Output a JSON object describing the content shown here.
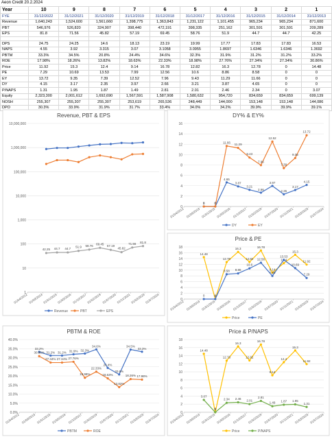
{
  "header": {
    "title": "Aeon Credit 20.2.2024"
  },
  "table": {
    "corner": "Year",
    "years": [
      "10",
      "9",
      "8",
      "7",
      "6",
      "5",
      "4",
      "3",
      "2",
      "1"
    ],
    "rows": [
      {
        "label": "FYE",
        "cells": [
          "31/12/2022",
          "31/12/2021",
          "31/12/2020",
          "31/12/2019",
          "31/12/2018",
          "31/12/2017",
          "31/12/2016",
          "31/12/2015",
          "31/12/2014",
          "31/12/2013"
        ]
      },
      {
        "label": "Revenue",
        "cells": [
          "1,640,243",
          "1,524,600",
          "1,561,660",
          "1,398,775",
          "1,363,843",
          "1,231,122",
          "1,101,455",
          "965,234",
          "965,234",
          "871,600"
        ]
      },
      {
        "label": "PBT",
        "cells": [
          "546,976",
          "526,820",
          "324,907",
          "398,440",
          "472,191",
          "398,335",
          "251,162",
          "301,591",
          "301,591",
          "209,289"
        ]
      },
      {
        "label": "EPS",
        "cells": [
          "81.8",
          "71.56",
          "45.82",
          "57.19",
          "69.45",
          "58.76",
          "51.9",
          "44.7",
          "44.7",
          "42.25"
        ]
      },
      {
        "label": "DPS",
        "cells": [
          "24.75",
          "24.25",
          "14.6",
          "18.13",
          "23.19",
          "19.99",
          "17.77",
          "17.83",
          "17.83",
          "16.53"
        ]
      },
      {
        "label": "NAPS",
        "cells": [
          "4.55",
          "3.92",
          "3.315",
          "3.07",
          "3.1058",
          "3.0955",
          "1.8697",
          "1.6346",
          "1.6346",
          "1.3692"
        ]
      },
      {
        "label": "PBTM",
        "cells": [
          "33.3%",
          "34.5%",
          "20.8%",
          "24.4%",
          "34.6%",
          "32.3%",
          "31.9%",
          "31.2%",
          "31.2%",
          "33.2%"
        ]
      },
      {
        "label": "ROE",
        "cells": [
          "17.98%",
          "18.26%",
          "13.82%",
          "18.63%",
          "22.33%",
          "18.98%",
          "27.76%",
          "27.34%",
          "27.34%",
          "30.86%"
        ]
      },
      {
        "label": "Price",
        "cells": [
          "11.92",
          "15.3",
          "12.4",
          "9.14",
          "16.78",
          "12.82",
          "16.3",
          "12.78",
          "0",
          "14.48"
        ]
      },
      {
        "label": "PE",
        "cells": [
          "7.29",
          "10.69",
          "13.53",
          "7.99",
          "12.56",
          "10.6",
          "8.86",
          "8.58",
          "0",
          "0"
        ]
      },
      {
        "label": "EY",
        "cells": [
          "13.72",
          "9.35",
          "7.39",
          "12.52",
          "7.96",
          "9.43",
          "11.29",
          "11.66",
          "0",
          "0"
        ]
      },
      {
        "label": "DY",
        "cells": [
          "4.15",
          "3.17",
          "2.35",
          "3.97",
          "2.66",
          "3.21",
          "3.87",
          "4.65",
          "0",
          "0"
        ]
      },
      {
        "label": "P/NAPS",
        "cells": [
          "1.31",
          "1.95",
          "1.87",
          "1.49",
          "2.81",
          "2.01",
          "2.46",
          "2.34",
          "0",
          "3.07"
        ]
      },
      {
        "label": "Equity",
        "cells": [
          "2,323,300",
          "2,001,612",
          "1,692,690",
          "1,567,591",
          "1,587,908",
          "1,580,632",
          "954,720",
          "834,659",
          "834,659",
          "699,139"
        ]
      },
      {
        "label": "NOSH",
        "cells": [
          "255,307",
          "255,307",
          "255,307",
          "253,619",
          "265,536",
          "248,449",
          "144,000",
          "153,148",
          "153,148",
          "144,086"
        ]
      },
      {
        "label": "DPO",
        "cells": [
          "30.3%",
          "33.9%",
          "31.9%",
          "31.7%",
          "33.4%",
          "34.0%",
          "34.2%",
          "39.9%",
          "39.9%",
          "39.1%"
        ]
      }
    ]
  },
  "chart_data": [
    {
      "type": "line",
      "title": "Revenue, PBT & EPS",
      "log_scale": true,
      "grid": true,
      "legend": "bottom",
      "x": [
        "2013-12-31",
        "2014-12-31",
        "2015-12-31",
        "2016-12-31",
        "2017-12-31",
        "2018-12-31",
        "2019-12-31",
        "2020-12-31",
        "2021-12-31",
        "2022-12-31"
      ],
      "xlim": [
        "2012-04-01",
        "2024-07-01"
      ],
      "xticks": [
        {
          "value": "2012-04-01",
          "label": "01/04/2012"
        },
        {
          "value": "2013-09-01",
          "label": "01/09/2013"
        },
        {
          "value": "2015-01-01",
          "label": "01/01/2015"
        },
        {
          "value": "2016-05-01",
          "label": "01/05/2016"
        },
        {
          "value": "2017-10-01",
          "label": "01/10/2017"
        },
        {
          "value": "2019-02-01",
          "label": "01/02/2019"
        },
        {
          "value": "2020-07-01",
          "label": "01/07/2020"
        },
        {
          "value": "2021-11-01",
          "label": "01/11/2021"
        },
        {
          "value": "2023-03-01",
          "label": "01/03/2023"
        },
        {
          "value": "2024-07-01",
          "label": "01/07/2024"
        }
      ],
      "ylim": [
        1,
        10000000
      ],
      "yticks": [
        1,
        10,
        100,
        {
          "value": 1000,
          "label": "1,000"
        },
        {
          "value": 10000,
          "label": "10,000"
        },
        {
          "value": 100000,
          "label": "100,000"
        },
        {
          "value": 1000000,
          "label": "1,000,000"
        },
        {
          "value": 10000000,
          "label": "10,000,000"
        }
      ],
      "series": [
        {
          "name": "Revenue",
          "color": "#4472c4",
          "data_labels": false,
          "values": [
            871600,
            965234,
            965234,
            1101455,
            1231122,
            1363843,
            1398775,
            1561660,
            1524600,
            1640243
          ]
        },
        {
          "name": "PBT",
          "color": "#ed7d31",
          "data_labels": false,
          "values": [
            209289,
            301591,
            301591,
            251162,
            398335,
            472191,
            398440,
            324907,
            526820,
            546976
          ]
        },
        {
          "name": "EPS",
          "color": "#a5a5a5",
          "data_labels": true,
          "values": [
            42.25,
            44.7,
            44.7,
            51.9,
            58.76,
            69.45,
            57.19,
            45.82,
            71.56,
            81.8
          ]
        }
      ]
    },
    {
      "type": "line",
      "title": "DY% & EY%",
      "log_scale": false,
      "grid": true,
      "legend": "bottom",
      "x": [
        "2013-12-31",
        "2014-12-31",
        "2015-12-31",
        "2016-12-31",
        "2017-12-31",
        "2018-12-31",
        "2019-12-31",
        "2020-12-31",
        "2021-12-31",
        "2022-12-31"
      ],
      "xlim": [
        "2012-04-01",
        "2024-07-01"
      ],
      "xticks": [
        {
          "value": "2012-04-01",
          "label": "01/04/2012"
        },
        {
          "value": "2013-09-01",
          "label": "01/09/2013"
        },
        {
          "value": "2015-01-01",
          "label": "01/01/2015"
        },
        {
          "value": "2016-05-01",
          "label": "01/05/2016"
        },
        {
          "value": "2017-10-01",
          "label": "01/10/2017"
        },
        {
          "value": "2019-02-01",
          "label": "01/02/2019"
        },
        {
          "value": "2020-07-01",
          "label": "01/07/2020"
        },
        {
          "value": "2021-11-01",
          "label": "01/11/2021"
        },
        {
          "value": "2023-03-01",
          "label": "01/03/2023"
        },
        {
          "value": "2024-07-01",
          "label": "01/07/2024"
        }
      ],
      "ylim": [
        0,
        16
      ],
      "yticks": [
        0,
        2,
        4,
        6,
        8,
        10,
        12,
        14,
        16
      ],
      "series": [
        {
          "name": "DY",
          "color": "#4472c4",
          "data_labels": true,
          "values": [
            0,
            0,
            4.65,
            3.87,
            3.21,
            2.66,
            3.97,
            2.35,
            3.17,
            4.15
          ]
        },
        {
          "name": "EY",
          "color": "#ed7d31",
          "data_labels": true,
          "values": [
            0,
            0,
            11.66,
            11.29,
            9.43,
            7.96,
            12.52,
            7.39,
            9.35,
            13.72
          ]
        }
      ]
    },
    {
      "type": "line",
      "title": "Price & PE",
      "log_scale": false,
      "grid": true,
      "legend": "bottom",
      "x": [
        "2013-12-31",
        "2014-12-31",
        "2015-12-31",
        "2016-12-31",
        "2017-12-31",
        "2018-12-31",
        "2019-12-31",
        "2020-12-31",
        "2021-12-31",
        "2022-12-31"
      ],
      "xlim": [
        "2012-04-01",
        "2024-07-01"
      ],
      "xticks": [
        {
          "value": "2012-04-01",
          "label": "01/04/2012"
        },
        {
          "value": "2013-09-01",
          "label": "01/09/2013"
        },
        {
          "value": "2015-01-01",
          "label": "01/01/2015"
        },
        {
          "value": "2016-05-01",
          "label": "01/05/2016"
        },
        {
          "value": "2017-10-01",
          "label": "01/10/2017"
        },
        {
          "value": "2019-02-01",
          "label": "01/02/2019"
        },
        {
          "value": "2020-07-01",
          "label": "01/07/2020"
        },
        {
          "value": "2021-11-01",
          "label": "01/11/2021"
        },
        {
          "value": "2023-03-01",
          "label": "01/03/2023"
        },
        {
          "value": "2024-07-01",
          "label": "01/07/2024"
        }
      ],
      "ylim": [
        0,
        18
      ],
      "yticks": [
        0,
        2,
        4,
        6,
        8,
        10,
        12,
        14,
        16,
        18
      ],
      "series": [
        {
          "name": "Price",
          "color": "#ffc000",
          "data_labels": true,
          "values": [
            14.48,
            0,
            12.78,
            16.3,
            12.82,
            16.78,
            9.14,
            12.4,
            15.3,
            11.92
          ]
        },
        {
          "name": "PE",
          "color": "#4472c4",
          "data_labels": true,
          "values": [
            0,
            0,
            8.58,
            8.86,
            10.6,
            12.56,
            7.99,
            13.53,
            10.69,
            7.29
          ]
        }
      ]
    },
    {
      "type": "line",
      "title": "PBTM & ROE",
      "log_scale": false,
      "grid": true,
      "legend": "bottom",
      "x": [
        "2013-12-31",
        "2014-12-31",
        "2015-12-31",
        "2016-12-31",
        "2017-12-31",
        "2018-12-31",
        "2019-12-31",
        "2020-12-31",
        "2021-12-31",
        "2022-12-31"
      ],
      "xlim": [
        "2012-04-01",
        "2024-07-01"
      ],
      "xticks": [
        {
          "value": "2012-04-01",
          "label": "01/04/2012"
        },
        {
          "value": "2013-09-01",
          "label": "01/09/2013"
        },
        {
          "value": "2015-01-01",
          "label": "01/01/2015"
        },
        {
          "value": "2016-05-01",
          "label": "01/05/2016"
        },
        {
          "value": "2017-10-01",
          "label": "01/10/2017"
        },
        {
          "value": "2019-02-01",
          "label": "01/02/2019"
        },
        {
          "value": "2020-07-01",
          "label": "01/07/2020"
        },
        {
          "value": "2021-11-01",
          "label": "01/11/2021"
        },
        {
          "value": "2023-03-01",
          "label": "01/03/2023"
        },
        {
          "value": "2024-07-01",
          "label": "01/07/2024"
        }
      ],
      "ylim": [
        0,
        40
      ],
      "yticks": [
        {
          "value": 0,
          "label": "0.0%"
        },
        {
          "value": 5,
          "label": "5.0%"
        },
        {
          "value": 10,
          "label": "10.0%"
        },
        {
          "value": 15,
          "label": "15.0%"
        },
        {
          "value": 20,
          "label": "20.0%"
        },
        {
          "value": 25,
          "label": "25.0%"
        },
        {
          "value": 30,
          "label": "30.0%"
        },
        {
          "value": 35,
          "label": "35.0%"
        },
        {
          "value": 40,
          "label": "40.0%"
        }
      ],
      "series": [
        {
          "name": "PBTM",
          "color": "#4472c4",
          "data_labels": true,
          "values": [
            33.2,
            31.2,
            31.2,
            31.9,
            32.3,
            34.6,
            24.4,
            20.8,
            34.5,
            33.3
          ],
          "value_labels": [
            "33.2%",
            "31.2%",
            "31.2%",
            "31.9%",
            "32.3%",
            "34.6%",
            "24.4%",
            "20.8%",
            "34.5%",
            "33.3%"
          ]
        },
        {
          "name": "ROE",
          "color": "#ed7d31",
          "data_labels": true,
          "values": [
            30.86,
            27.34,
            27.34,
            27.76,
            18.98,
            22.33,
            18.63,
            13.82,
            18.26,
            17.98
          ],
          "value_labels": [
            "30.86%",
            "27.34%",
            "27.34%",
            "27.76%",
            "18.98%",
            "22.33%",
            "18.63%",
            "13.82%",
            "18.26%",
            "17.98%"
          ]
        }
      ]
    },
    {
      "type": "line",
      "title": "Price & P/NAPS",
      "log_scale": false,
      "grid": true,
      "legend": "bottom",
      "x": [
        "2013-12-31",
        "2014-12-31",
        "2015-12-31",
        "2016-12-31",
        "2017-12-31",
        "2018-12-31",
        "2019-12-31",
        "2020-12-31",
        "2021-12-31",
        "2022-12-31"
      ],
      "xlim": [
        "2012-04-01",
        "2024-07-01"
      ],
      "xticks": [
        {
          "value": "2012-04-01",
          "label": "01/04/2012"
        },
        {
          "value": "2013-09-01",
          "label": "01/09/2013"
        },
        {
          "value": "2015-01-01",
          "label": "01/01/2015"
        },
        {
          "value": "2016-05-01",
          "label": "01/05/2016"
        },
        {
          "value": "2017-10-01",
          "label": "01/10/2017"
        },
        {
          "value": "2019-02-01",
          "label": "01/02/2019"
        },
        {
          "value": "2020-07-01",
          "label": "01/07/2020"
        },
        {
          "value": "2021-11-01",
          "label": "01/11/2021"
        },
        {
          "value": "2023-03-01",
          "label": "01/03/2023"
        },
        {
          "value": "2024-07-01",
          "label": "01/07/2024"
        }
      ],
      "ylim": [
        0,
        18
      ],
      "yticks": [
        0,
        2,
        4,
        6,
        8,
        10,
        12,
        14,
        16,
        18
      ],
      "series": [
        {
          "name": "Price",
          "color": "#ffc000",
          "data_labels": true,
          "values": [
            14.48,
            0,
            12.78,
            16.3,
            12.82,
            16.78,
            9.14,
            12.4,
            15.3,
            11.92
          ]
        },
        {
          "name": "P/NAPS",
          "color": "#70ad47",
          "data_labels": true,
          "values": [
            3.07,
            0,
            2.34,
            2.46,
            2.01,
            2.81,
            1.49,
            1.87,
            1.95,
            1.31
          ]
        }
      ]
    }
  ]
}
